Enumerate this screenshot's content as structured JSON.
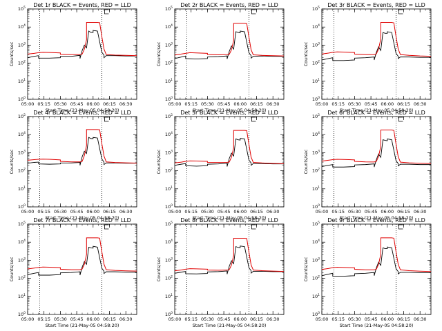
{
  "chart_data": {
    "type": "line",
    "y_scale": "log",
    "ylim": [
      1,
      100000
    ],
    "xlim": [
      "05:00",
      "06:40"
    ],
    "x_tick_labels": [
      "05:00",
      "05:15",
      "05:30",
      "05:45",
      "06:00",
      "06:15",
      "06:30"
    ],
    "y_tick_exponents": [
      0,
      1,
      2,
      3,
      4,
      5
    ],
    "ylabel": "Counts/sec",
    "xlabel": "Start Time (21-May-05 04:58:20)",
    "series_colors": {
      "events": "#000000",
      "lld": "#e00000"
    },
    "x_units": "minutes after 05:00",
    "panels": [
      {
        "title": "Det 1r BLACK = Events, RED = LLD",
        "vlines": [
          11,
          68
        ],
        "events_x": [
          0,
          6,
          10,
          10,
          20,
          30,
          30,
          40,
          48,
          48,
          50,
          52,
          54,
          56,
          58,
          60,
          60,
          64,
          68,
          70,
          70,
          72,
          80,
          90,
          100
        ],
        "events_y": [
          200,
          240,
          260,
          190,
          190,
          200,
          240,
          240,
          270,
          180,
          500,
          1000,
          700,
          6000,
          5000,
          5000,
          6500,
          6000,
          400,
          280,
          200,
          260,
          260,
          250,
          250
        ],
        "lld_x": [
          0,
          6,
          10,
          14,
          20,
          30,
          30,
          40,
          48,
          50,
          52,
          54,
          54,
          64,
          66,
          68,
          70,
          72,
          80,
          90,
          100
        ],
        "lld_y": [
          320,
          350,
          380,
          400,
          390,
          370,
          310,
          300,
          300,
          320,
          600,
          2000,
          18000,
          18000,
          17500,
          3000,
          600,
          300,
          280,
          270,
          260
        ]
      },
      {
        "title": "Det 2r BLACK = Events, RED = LLD",
        "vlines": [
          11,
          68
        ],
        "events_x": [
          0,
          6,
          10,
          10,
          20,
          30,
          30,
          40,
          48,
          48,
          50,
          52,
          54,
          56,
          58,
          60,
          60,
          64,
          68,
          70,
          70,
          72,
          80,
          90,
          100
        ],
        "events_y": [
          180,
          220,
          250,
          180,
          170,
          180,
          220,
          230,
          250,
          170,
          450,
          900,
          600,
          5500,
          5000,
          4800,
          6000,
          5500,
          380,
          260,
          190,
          240,
          250,
          240,
          240
        ],
        "lld_x": [
          0,
          6,
          10,
          14,
          20,
          30,
          30,
          40,
          48,
          50,
          52,
          54,
          54,
          64,
          66,
          68,
          70,
          72,
          80,
          90,
          100
        ],
        "lld_y": [
          280,
          320,
          350,
          380,
          370,
          350,
          300,
          290,
          300,
          310,
          550,
          1800,
          16000,
          16000,
          15500,
          2800,
          550,
          290,
          270,
          260,
          250
        ]
      },
      {
        "title": "Det 3r BLACK = Events, RED = LLD",
        "vlines": [
          11,
          68
        ],
        "events_x": [
          0,
          6,
          10,
          10,
          20,
          30,
          30,
          40,
          48,
          48,
          50,
          52,
          54,
          56,
          58,
          60,
          60,
          64,
          68,
          70,
          70,
          72,
          80,
          90,
          100
        ],
        "events_y": [
          150,
          180,
          200,
          140,
          140,
          150,
          190,
          200,
          220,
          150,
          400,
          800,
          500,
          5000,
          4500,
          4500,
          5500,
          5000,
          350,
          240,
          180,
          220,
          220,
          210,
          210
        ],
        "lld_x": [
          0,
          6,
          10,
          14,
          20,
          30,
          30,
          40,
          48,
          50,
          52,
          54,
          54,
          64,
          66,
          68,
          70,
          72,
          80,
          90,
          100
        ],
        "lld_y": [
          320,
          360,
          400,
          420,
          410,
          390,
          320,
          300,
          300,
          330,
          600,
          2200,
          18000,
          18000,
          17000,
          3000,
          600,
          300,
          270,
          250,
          240
        ]
      },
      {
        "title": "Det 4r BLACK = Events, RED = LLD",
        "vlines": [
          11,
          68
        ],
        "events_x": [
          0,
          6,
          10,
          10,
          20,
          30,
          30,
          40,
          48,
          48,
          50,
          52,
          54,
          56,
          58,
          60,
          60,
          64,
          68,
          70,
          70,
          72,
          80,
          90,
          100
        ],
        "events_y": [
          260,
          290,
          300,
          240,
          230,
          240,
          270,
          270,
          290,
          200,
          600,
          1200,
          900,
          7000,
          6000,
          6000,
          7000,
          6500,
          450,
          300,
          220,
          270,
          270,
          260,
          260
        ],
        "lld_x": [
          0,
          6,
          10,
          14,
          20,
          30,
          30,
          40,
          48,
          50,
          52,
          54,
          54,
          64,
          66,
          68,
          70,
          72,
          80,
          90,
          100
        ],
        "lld_y": [
          380,
          410,
          430,
          440,
          430,
          400,
          330,
          310,
          310,
          330,
          700,
          2500,
          19000,
          19000,
          18500,
          3200,
          650,
          310,
          285,
          275,
          265
        ]
      },
      {
        "title": "Det 5r BLACK = Events, RED = LLD",
        "vlines": [
          11,
          68
        ],
        "events_x": [
          0,
          6,
          10,
          10,
          20,
          30,
          30,
          40,
          48,
          48,
          50,
          52,
          54,
          56,
          58,
          60,
          60,
          64,
          68,
          70,
          70,
          72,
          80,
          90,
          100
        ],
        "events_y": [
          200,
          230,
          250,
          190,
          180,
          190,
          230,
          240,
          260,
          170,
          480,
          950,
          650,
          5800,
          5200,
          5000,
          6200,
          5800,
          390,
          270,
          200,
          250,
          250,
          240,
          240
        ],
        "lld_x": [
          0,
          6,
          10,
          14,
          20,
          30,
          30,
          40,
          48,
          50,
          52,
          54,
          54,
          64,
          66,
          68,
          70,
          72,
          80,
          90,
          100
        ],
        "lld_y": [
          270,
          300,
          330,
          350,
          345,
          330,
          290,
          285,
          290,
          305,
          560,
          1900,
          17000,
          17000,
          16500,
          2900,
          560,
          290,
          270,
          255,
          245
        ]
      },
      {
        "title": "Det 6r BLACK = Events, RED = LLD",
        "vlines": [
          11,
          68
        ],
        "events_x": [
          0,
          6,
          10,
          10,
          20,
          30,
          30,
          40,
          48,
          48,
          50,
          52,
          54,
          56,
          58,
          60,
          60,
          64,
          68,
          70,
          70,
          72,
          80,
          90,
          100
        ],
        "events_y": [
          170,
          200,
          220,
          160,
          160,
          170,
          210,
          220,
          240,
          160,
          420,
          850,
          550,
          5200,
          4800,
          4600,
          5800,
          5200,
          360,
          250,
          185,
          230,
          230,
          220,
          220
        ],
        "lld_x": [
          0,
          6,
          10,
          14,
          20,
          30,
          30,
          40,
          48,
          50,
          52,
          54,
          54,
          64,
          66,
          68,
          70,
          72,
          80,
          90,
          100
        ],
        "lld_y": [
          340,
          380,
          410,
          430,
          420,
          400,
          330,
          310,
          305,
          330,
          620,
          2200,
          18000,
          18000,
          17000,
          3000,
          600,
          300,
          275,
          260,
          250
        ]
      },
      {
        "title": "Det 7r BLACK = Events, RED = LLD",
        "vlines": [
          11,
          68
        ],
        "events_x": [
          0,
          6,
          10,
          10,
          20,
          30,
          30,
          40,
          48,
          48,
          50,
          52,
          54,
          56,
          58,
          60,
          60,
          64,
          68,
          70,
          70,
          72,
          80,
          90,
          100
        ],
        "events_y": [
          160,
          190,
          210,
          150,
          150,
          160,
          200,
          210,
          230,
          150,
          420,
          850,
          600,
          5200,
          4800,
          4700,
          5900,
          5300,
          360,
          250,
          185,
          230,
          230,
          220,
          220
        ],
        "lld_x": [
          0,
          6,
          10,
          14,
          20,
          30,
          30,
          40,
          48,
          50,
          52,
          54,
          54,
          64,
          66,
          68,
          70,
          72,
          80,
          90,
          100
        ],
        "lld_y": [
          330,
          370,
          400,
          420,
          410,
          390,
          320,
          300,
          300,
          330,
          600,
          2100,
          17500,
          17500,
          16800,
          3000,
          600,
          300,
          275,
          260,
          250
        ]
      },
      {
        "title": "Det 8r BLACK = Events, RED = LLD",
        "vlines": [
          11,
          68
        ],
        "events_x": [
          0,
          6,
          10,
          10,
          20,
          30,
          30,
          40,
          48,
          48,
          50,
          52,
          54,
          56,
          58,
          60,
          60,
          64,
          68,
          70,
          70,
          72,
          80,
          90,
          100
        ],
        "events_y": [
          190,
          220,
          240,
          180,
          175,
          185,
          225,
          235,
          255,
          170,
          470,
          940,
          640,
          5700,
          5100,
          5000,
          6100,
          5700,
          385,
          265,
          195,
          245,
          245,
          235,
          235
        ],
        "lld_x": [
          0,
          6,
          10,
          14,
          20,
          30,
          30,
          40,
          48,
          50,
          52,
          54,
          54,
          64,
          66,
          68,
          70,
          72,
          80,
          90,
          100
        ],
        "lld_y": [
          260,
          290,
          320,
          340,
          335,
          320,
          285,
          280,
          285,
          300,
          550,
          1850,
          16500,
          16500,
          16000,
          2850,
          550,
          285,
          265,
          250,
          240
        ]
      },
      {
        "title": "Det 9r BLACK = Events, RED = LLD",
        "vlines": [
          11,
          68
        ],
        "events_x": [
          0,
          6,
          10,
          10,
          20,
          30,
          30,
          40,
          48,
          48,
          50,
          52,
          54,
          56,
          58,
          60,
          60,
          64,
          68,
          70,
          70,
          72,
          80,
          90,
          100
        ],
        "events_y": [
          140,
          170,
          190,
          130,
          130,
          140,
          180,
          190,
          210,
          140,
          390,
          780,
          520,
          4900,
          4400,
          4400,
          5400,
          4900,
          340,
          235,
          175,
          215,
          215,
          205,
          205
        ],
        "lld_x": [
          0,
          6,
          10,
          14,
          20,
          30,
          30,
          40,
          48,
          50,
          52,
          54,
          54,
          64,
          66,
          68,
          70,
          72,
          80,
          90,
          100
        ],
        "lld_y": [
          310,
          350,
          390,
          410,
          400,
          380,
          315,
          295,
          295,
          325,
          590,
          2100,
          17500,
          17500,
          16600,
          2950,
          590,
          295,
          265,
          248,
          238
        ]
      }
    ]
  }
}
